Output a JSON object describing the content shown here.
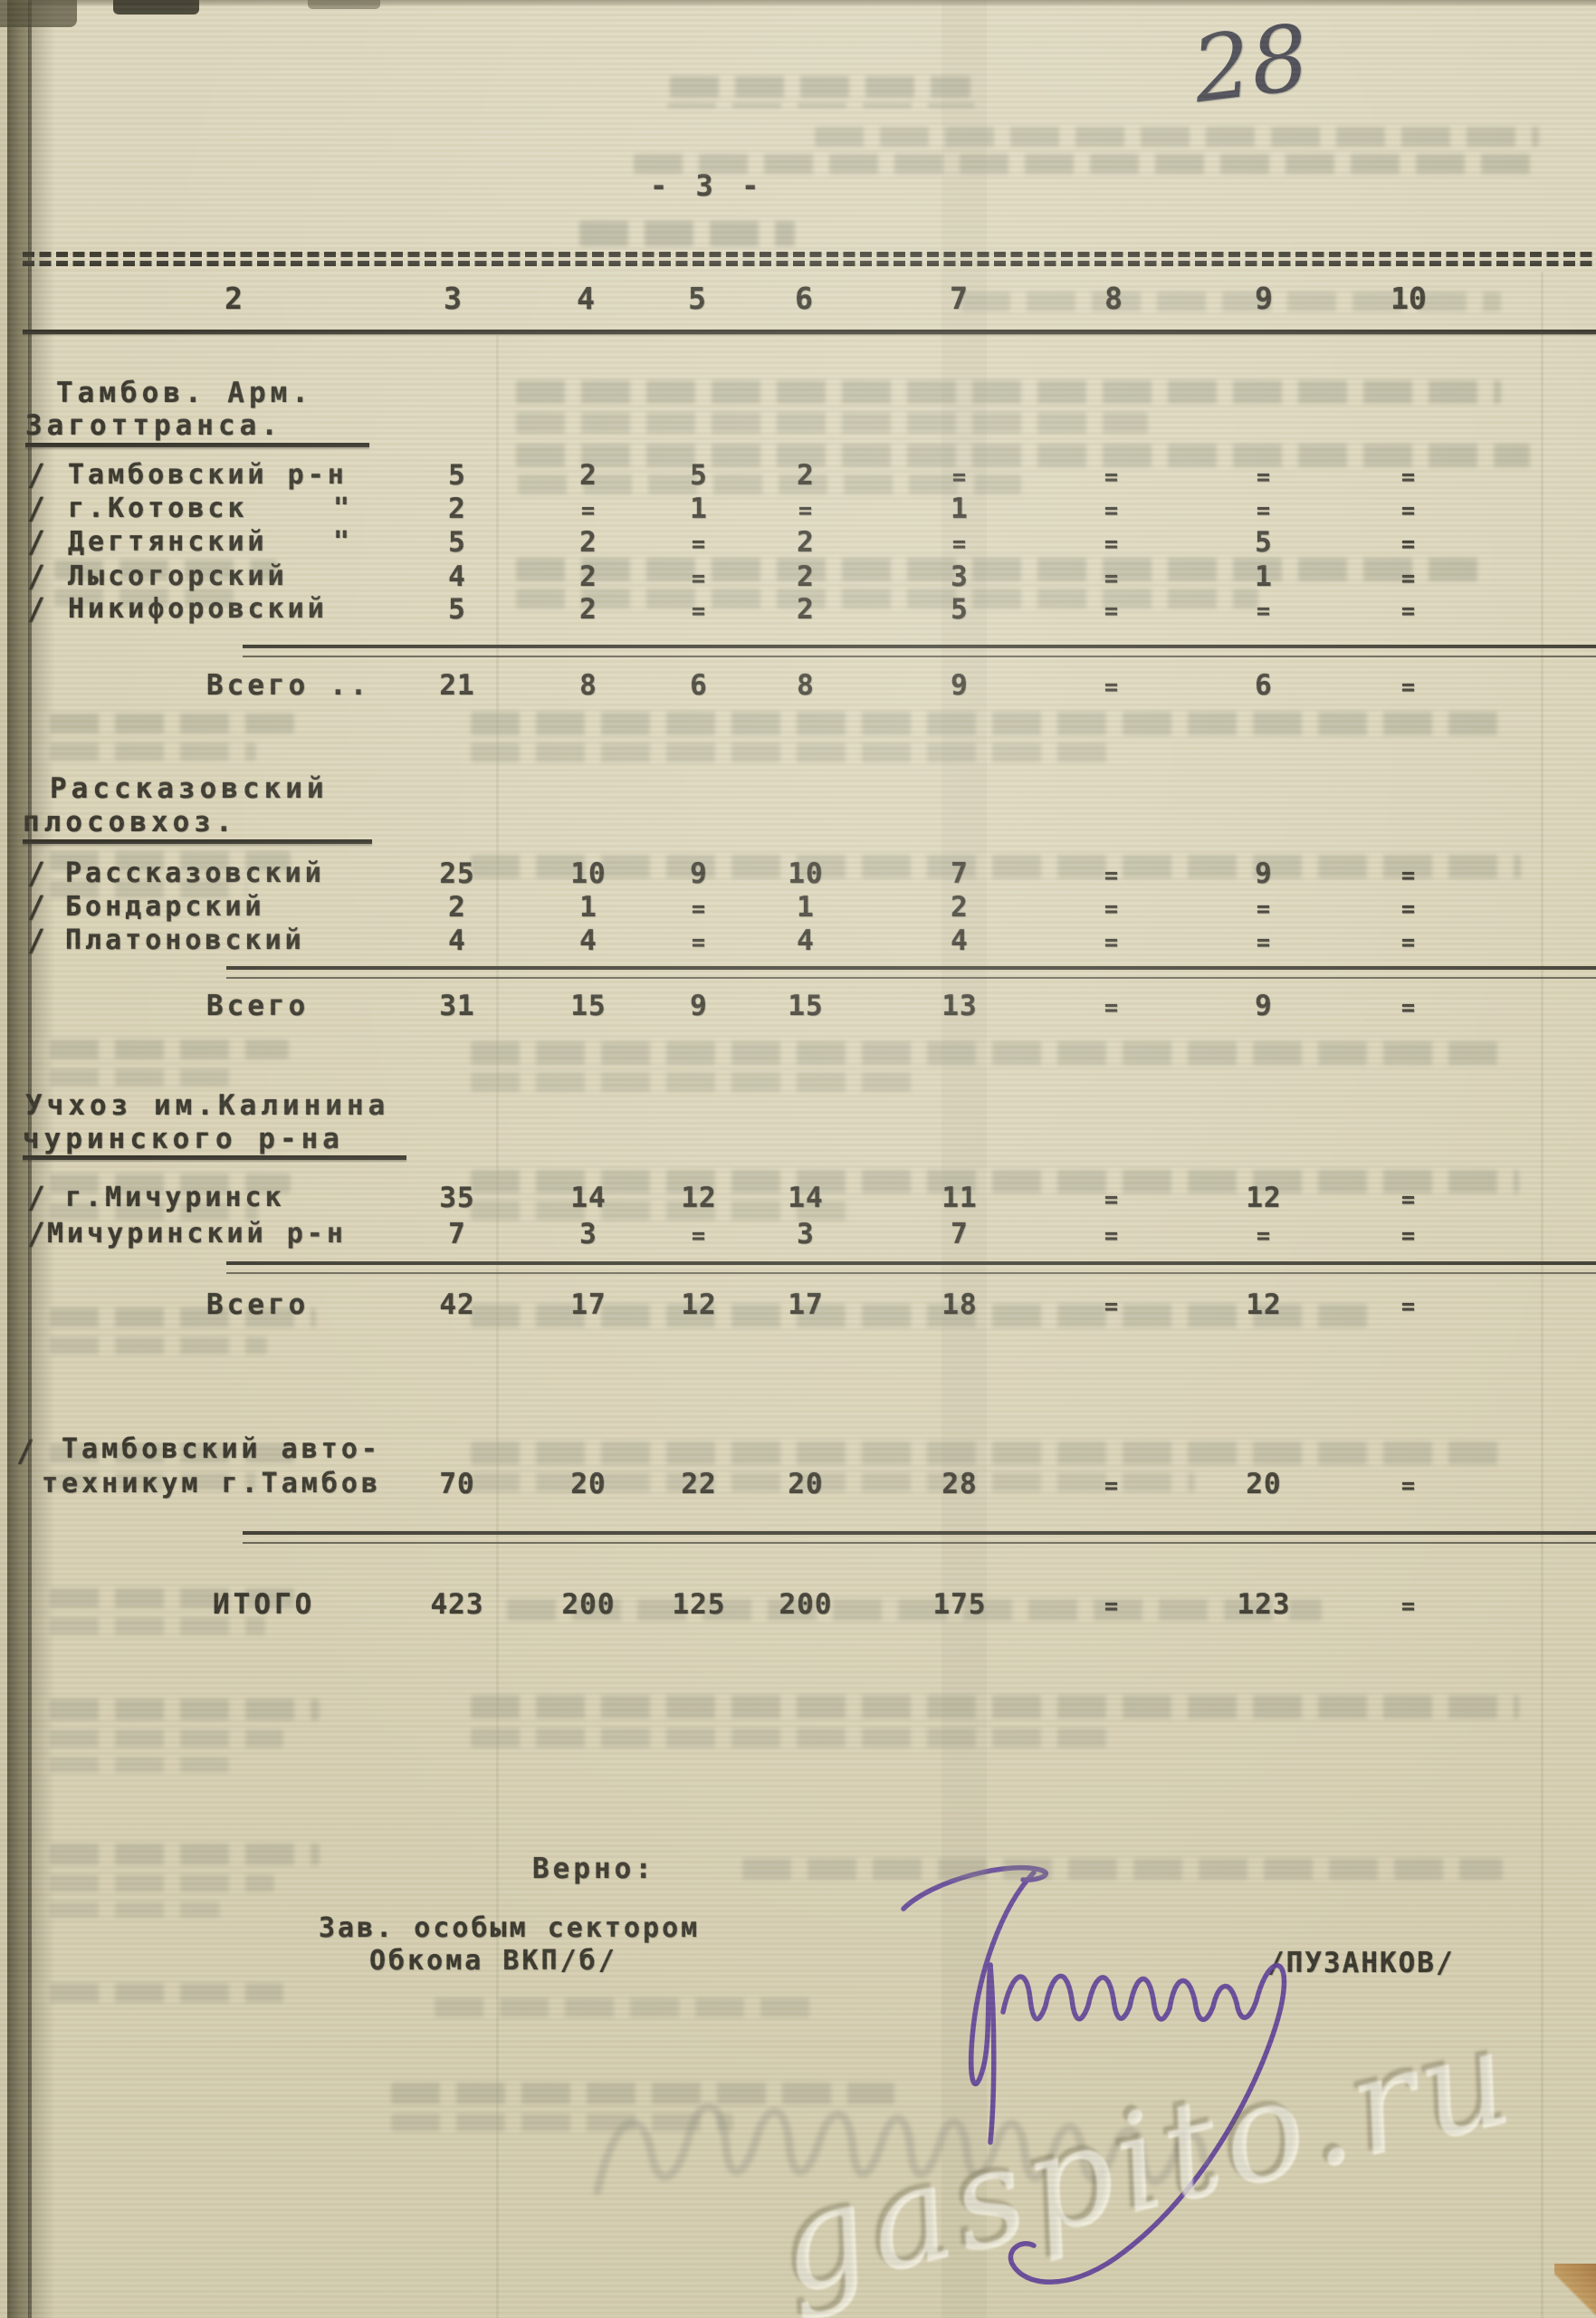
{
  "page": {
    "handwritten_number": "28",
    "page_marker": "- 3 -",
    "watermark": "gaspito.ru"
  },
  "table": {
    "column_headers": [
      "2",
      "3",
      "4",
      "5",
      "6",
      "7",
      "8",
      "9",
      "10"
    ],
    "sections": [
      {
        "heading_lines": [
          "Тамбов. Арм.",
          "Заготтранса."
        ],
        "rows": [
          {
            "prefix": "/",
            "label": "Тамбовский р-н",
            "values": [
              "5",
              "2",
              "5",
              "2",
              "=",
              "=",
              "=",
              "="
            ]
          },
          {
            "prefix": "/",
            "label": "г.Котовск",
            "quote": "\"",
            "values": [
              "2",
              "=",
              "1",
              "=",
              "1",
              "=",
              "=",
              "="
            ]
          },
          {
            "prefix": "/",
            "label": "Дегтянский",
            "quote": "\"",
            "values": [
              "5",
              "2",
              "=",
              "2",
              "=",
              "=",
              "5",
              "="
            ]
          },
          {
            "prefix": "/",
            "label": "Лысогорский",
            "values": [
              "4",
              "2",
              "=",
              "2",
              "3",
              "=",
              "1",
              "="
            ]
          },
          {
            "prefix": "/",
            "label": "Никифоровский",
            "values": [
              "5",
              "2",
              "=",
              "2",
              "5",
              "=",
              "=",
              "="
            ]
          }
        ],
        "total": {
          "label": "Всего ..",
          "values": [
            "21",
            "8",
            "6",
            "8",
            "9",
            "=",
            "6",
            "="
          ]
        }
      },
      {
        "heading_lines": [
          "Рассказовский",
          "плосовхоз."
        ],
        "rows": [
          {
            "prefix": "/",
            "label": "Рассказовский",
            "values": [
              "25",
              "10",
              "9",
              "10",
              "7",
              "=",
              "9",
              "="
            ]
          },
          {
            "prefix": "/",
            "label": "Бондарский",
            "values": [
              "2",
              "1",
              "=",
              "1",
              "2",
              "=",
              "=",
              "="
            ]
          },
          {
            "prefix": "/",
            "label": "Платоновский",
            "values": [
              "4",
              "4",
              "=",
              "4",
              "4",
              "=",
              "=",
              "="
            ]
          }
        ],
        "total": {
          "label": "Всего",
          "values": [
            "31",
            "15",
            "9",
            "15",
            "13",
            "=",
            "9",
            "="
          ]
        }
      },
      {
        "heading_lines": [
          "Учхоз им.Калинина",
          "чуринского р-на"
        ],
        "rows": [
          {
            "prefix": "/",
            "label": "г.Мичуринск",
            "values": [
              "35",
              "14",
              "12",
              "14",
              "11",
              "=",
              "12",
              "="
            ]
          },
          {
            "prefix": "/",
            "label": "Мичуринский р-н",
            "values": [
              "7",
              "3",
              "=",
              "3",
              "7",
              "=",
              "=",
              "="
            ]
          }
        ],
        "total": {
          "label": "Всего",
          "values": [
            "42",
            "17",
            "12",
            "17",
            "18",
            "=",
            "12",
            "="
          ]
        }
      }
    ],
    "standalone_row": {
      "prefix": "/",
      "label_lines": [
        "Тамбовский авто-",
        "техникум г.Тамбов"
      ],
      "values": [
        "70",
        "20",
        "22",
        "20",
        "28",
        "=",
        "20",
        "="
      ]
    },
    "grand_total": {
      "label": "ИТОГО",
      "values": [
        "423",
        "200",
        "125",
        "200",
        "175",
        "=",
        "123",
        "="
      ]
    }
  },
  "footer": {
    "verno": "Верно:",
    "position_line1": "Зав. особым сектором",
    "position_line2": "Обкома ВКП/б/",
    "signature_name": "/ПУЗАНКОВ/"
  }
}
